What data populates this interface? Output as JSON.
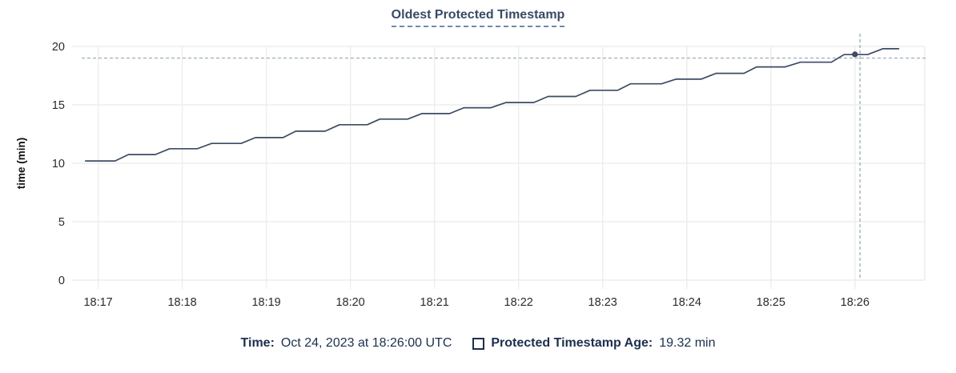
{
  "chart_data": {
    "type": "line",
    "title": "Oldest Protected Timestamp",
    "xlabel": "",
    "ylabel": "time (min)",
    "ylim": [
      0,
      20
    ],
    "yticks": [
      0,
      5,
      10,
      15,
      20
    ],
    "xlim": [
      16.69,
      26.83
    ],
    "x_unit": "minutes after 18:00 UTC, Oct 24, 2023",
    "xticks": [
      {
        "m": 17,
        "label": "18:17"
      },
      {
        "m": 18,
        "label": "18:18"
      },
      {
        "m": 19,
        "label": "18:19"
      },
      {
        "m": 20,
        "label": "18:20"
      },
      {
        "m": 21,
        "label": "18:21"
      },
      {
        "m": 22,
        "label": "18:22"
      },
      {
        "m": 23,
        "label": "18:23"
      },
      {
        "m": 24,
        "label": "18:24"
      },
      {
        "m": 25,
        "label": "18:25"
      },
      {
        "m": 26,
        "label": "18:26"
      }
    ],
    "grid": true,
    "legend_position": "bottom",
    "series": [
      {
        "name": "Protected Timestamp Age",
        "unit": "min",
        "points": [
          [
            16.85,
            10.2
          ],
          [
            17.2,
            10.2
          ],
          [
            17.36,
            10.75
          ],
          [
            17.68,
            10.75
          ],
          [
            17.85,
            11.25
          ],
          [
            18.18,
            11.25
          ],
          [
            18.35,
            11.7
          ],
          [
            18.7,
            11.7
          ],
          [
            18.87,
            12.2
          ],
          [
            19.2,
            12.2
          ],
          [
            19.35,
            12.75
          ],
          [
            19.7,
            12.75
          ],
          [
            19.87,
            13.3
          ],
          [
            20.2,
            13.3
          ],
          [
            20.35,
            13.78
          ],
          [
            20.68,
            13.78
          ],
          [
            20.85,
            14.25
          ],
          [
            21.18,
            14.25
          ],
          [
            21.35,
            14.75
          ],
          [
            21.67,
            14.75
          ],
          [
            21.85,
            15.2
          ],
          [
            22.18,
            15.2
          ],
          [
            22.35,
            15.72
          ],
          [
            22.68,
            15.72
          ],
          [
            22.85,
            16.25
          ],
          [
            23.18,
            16.25
          ],
          [
            23.33,
            16.8
          ],
          [
            23.7,
            16.8
          ],
          [
            23.87,
            17.2
          ],
          [
            24.17,
            17.2
          ],
          [
            24.35,
            17.7
          ],
          [
            24.68,
            17.7
          ],
          [
            24.83,
            18.25
          ],
          [
            25.17,
            18.25
          ],
          [
            25.35,
            18.65
          ],
          [
            25.72,
            18.65
          ],
          [
            25.87,
            19.3
          ],
          [
            26.15,
            19.3
          ],
          [
            26.33,
            19.8
          ],
          [
            26.52,
            19.8
          ]
        ]
      }
    ],
    "hover": {
      "time": "Oct 24, 2023 at 18:26:00 UTC",
      "value_min": 19.32,
      "dot": {
        "x": 26.0,
        "y": 19.32
      },
      "crosshair": {
        "x": 26.06,
        "y": 19.0
      }
    },
    "colors": {
      "line": "#3c4b63",
      "dot": "#3c4b63",
      "crosshair": "#9fb4c1",
      "grid": "#ededed",
      "tick_text": "#2b2b2b",
      "axis_label_text": "#111111",
      "title_text": "#394a66",
      "footer_text": "#1c2f4e"
    }
  },
  "footer": {
    "time_label": "Time:",
    "time_value": "Oct 24, 2023 at 18:26:00 UTC",
    "series_label": "Protected Timestamp Age:",
    "series_value": "19.32 min"
  }
}
